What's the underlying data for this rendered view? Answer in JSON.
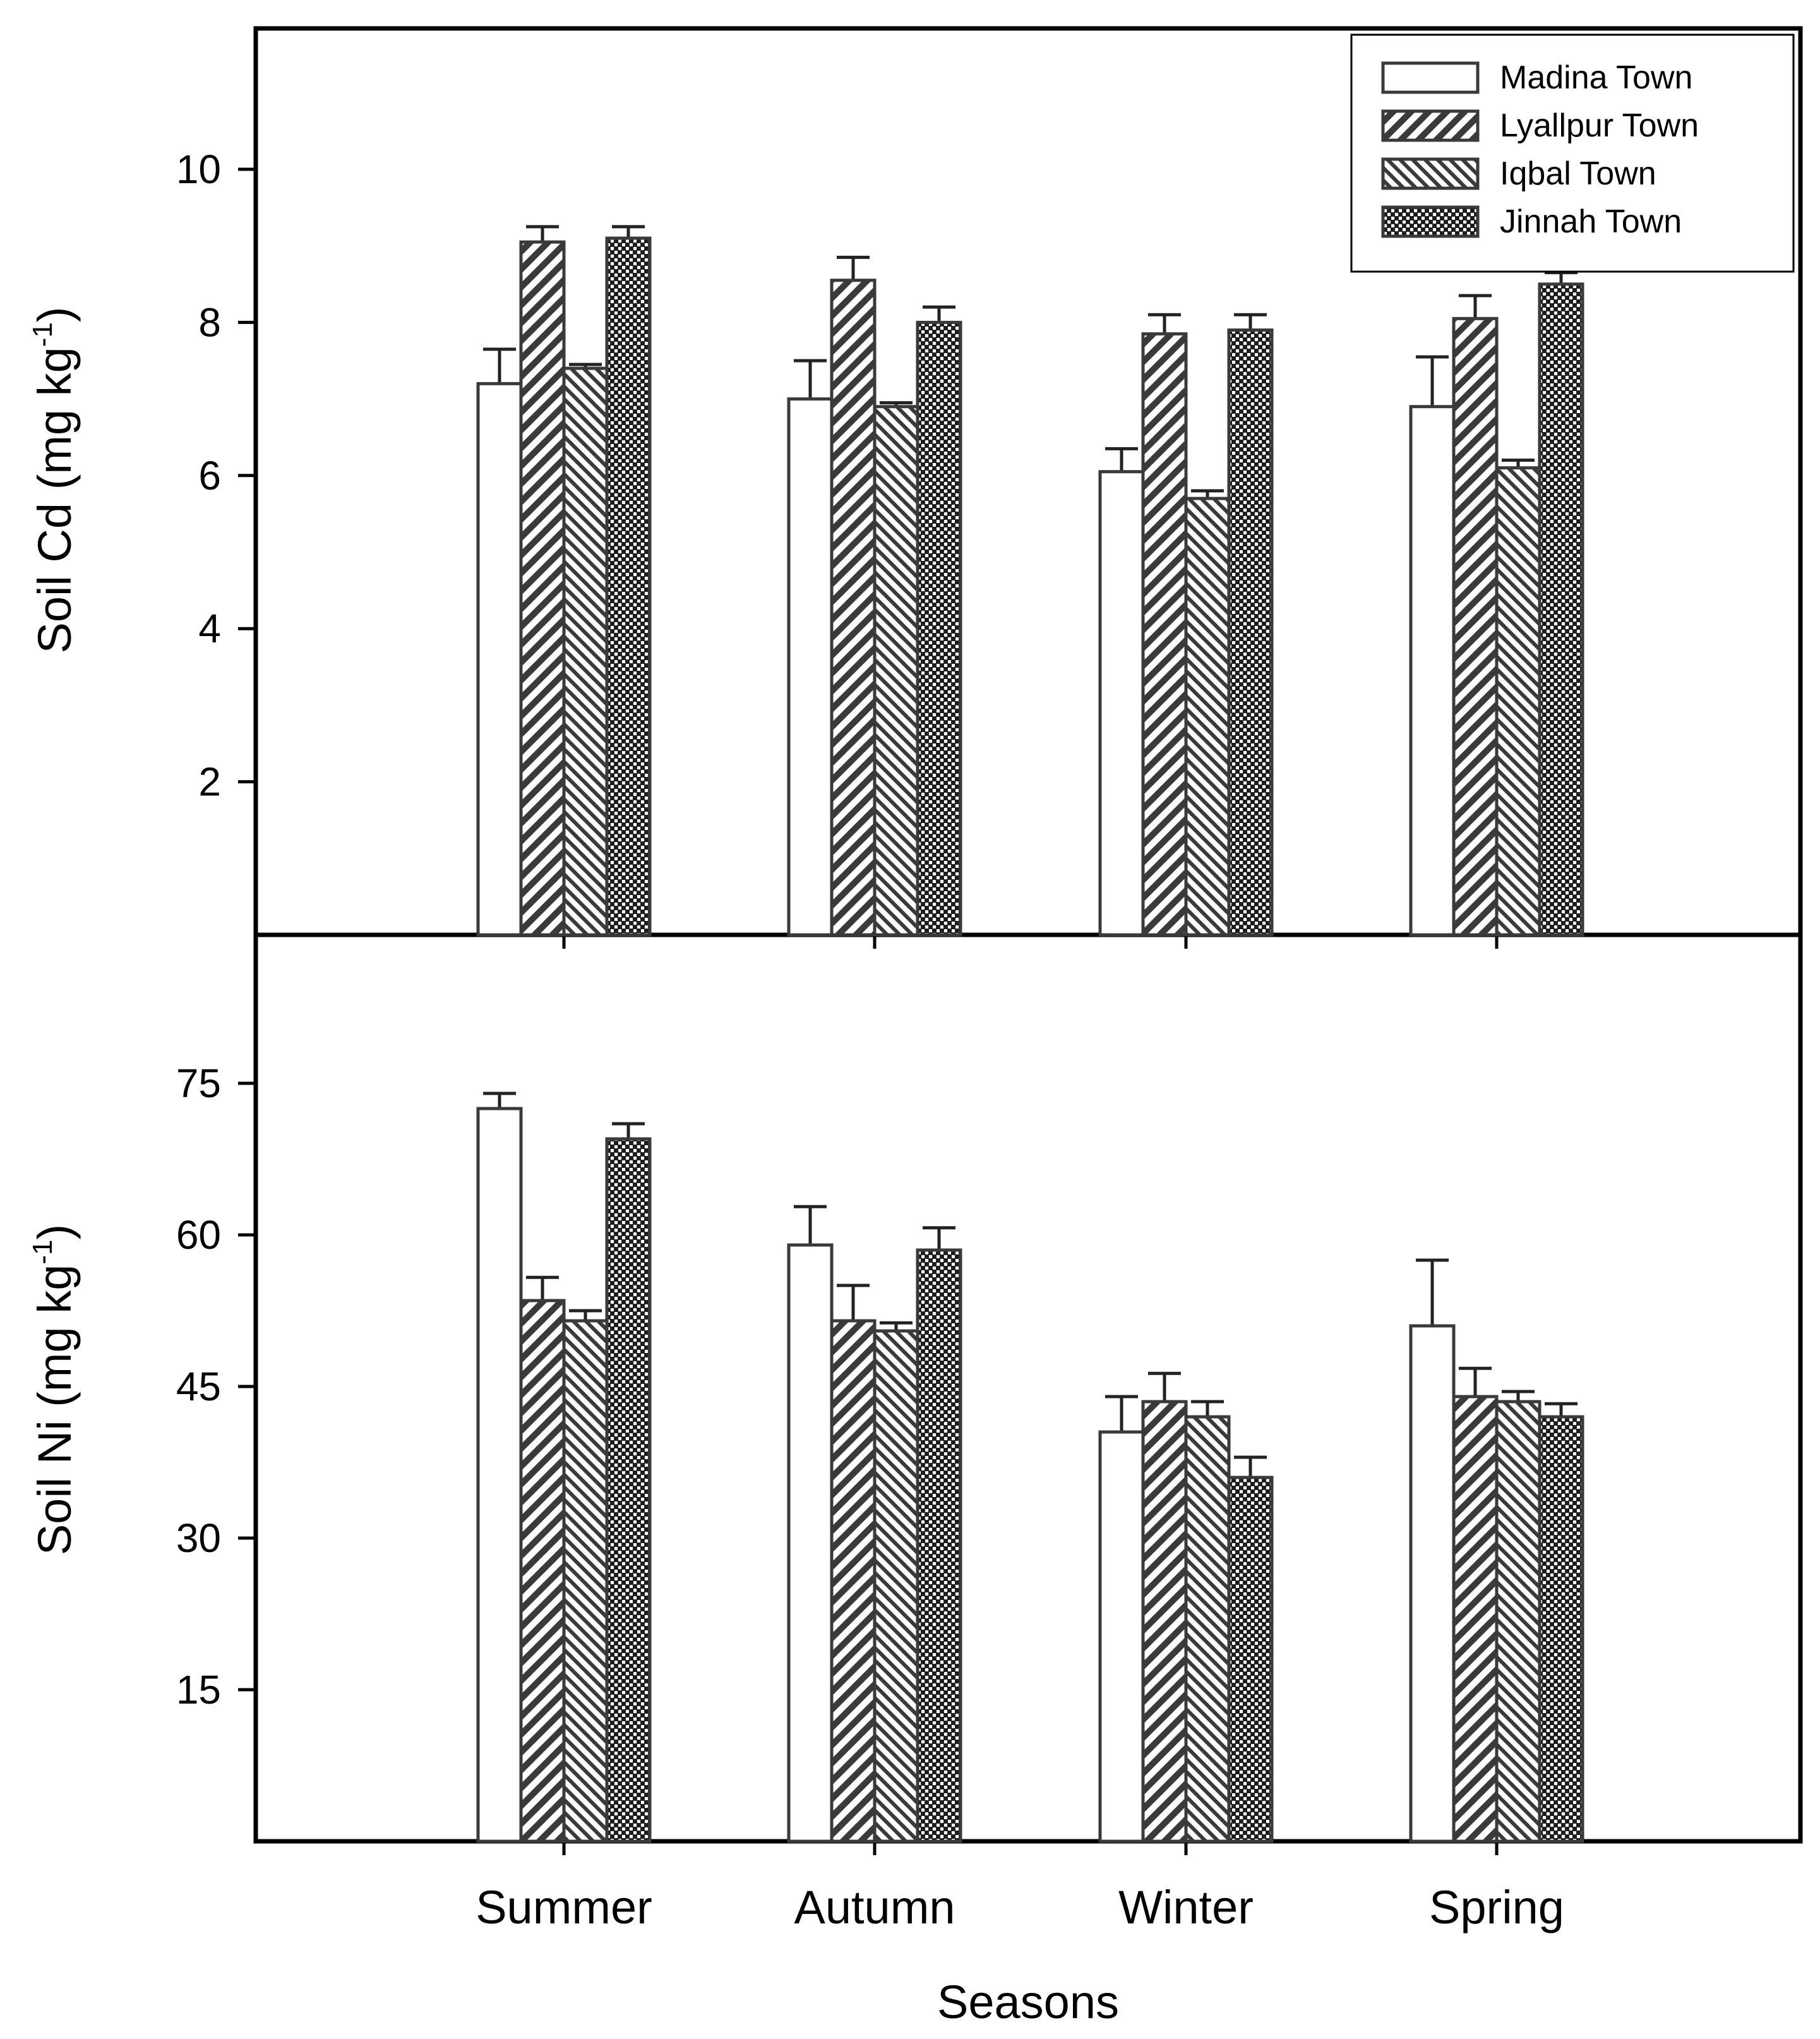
{
  "colors": {
    "madina": "#ffffff",
    "lyallpur": "#9a9a9a",
    "iqbal": "#b5b5b5",
    "jinnah": "#555555",
    "axis": "#000000"
  },
  "legend": {
    "placement": "top-right",
    "entries": [
      {
        "label": "Madina Town",
        "pattern": "open"
      },
      {
        "label": "Lyallpur Town",
        "pattern": "wide-diagonal"
      },
      {
        "label": "Iqbal Town",
        "pattern": "back-diagonal"
      },
      {
        "label": "Jinnah Town",
        "pattern": "dots"
      }
    ]
  },
  "chart_data": [
    {
      "type": "bar",
      "panel": "top",
      "title": "",
      "xlabel": "Seasons",
      "ylabel": "Soil Cd (mg kg",
      "ylabel_sup": "-1",
      "ylabel_close": ")",
      "ylim": [
        0,
        12
      ],
      "yticks": [
        2,
        4,
        6,
        8,
        10
      ],
      "ytick_labels": [
        "2",
        "4",
        "6",
        "8",
        "10"
      ],
      "categories": [
        "Summer",
        "Autumn",
        "Winter",
        "Spring"
      ],
      "series": [
        {
          "name": "Madina Town",
          "values": [
            7.2,
            7.0,
            6.05,
            6.9
          ],
          "errors": [
            0.45,
            0.5,
            0.3,
            0.65
          ]
        },
        {
          "name": "Lyallpur Town",
          "values": [
            9.05,
            8.55,
            7.85,
            8.05
          ],
          "errors": [
            0.2,
            0.3,
            0.25,
            0.3
          ]
        },
        {
          "name": "Iqbal Town",
          "values": [
            7.4,
            6.9,
            5.7,
            6.1
          ],
          "errors": [
            0.05,
            0.05,
            0.1,
            0.1
          ]
        },
        {
          "name": "Jinnah Town",
          "values": [
            9.1,
            8.0,
            7.9,
            8.5
          ],
          "errors": [
            0.15,
            0.2,
            0.2,
            0.15
          ]
        }
      ]
    },
    {
      "type": "bar",
      "panel": "bottom",
      "title": "",
      "xlabel": "Seasons",
      "ylabel": "Soil Ni (mg kg",
      "ylabel_sup": "-1",
      "ylabel_close": ")",
      "ylim": [
        0,
        90
      ],
      "yticks": [
        15,
        30,
        45,
        60,
        75
      ],
      "ytick_labels": [
        "15",
        "30",
        "45",
        "60",
        "75"
      ],
      "categories": [
        "Summer",
        "Autumn",
        "Winter",
        "Spring"
      ],
      "series": [
        {
          "name": "Madina Town",
          "values": [
            72.5,
            59.0,
            40.5,
            51.0
          ],
          "errors": [
            1.5,
            3.8,
            3.5,
            6.5
          ]
        },
        {
          "name": "Lyallpur Town",
          "values": [
            53.5,
            51.5,
            43.5,
            44.0
          ],
          "errors": [
            2.3,
            3.5,
            2.8,
            2.8
          ]
        },
        {
          "name": "Iqbal Town",
          "values": [
            51.5,
            50.5,
            42.0,
            43.5
          ],
          "errors": [
            1.0,
            0.8,
            1.5,
            1.0
          ]
        },
        {
          "name": "Jinnah Town",
          "values": [
            69.5,
            58.5,
            36.0,
            42.0
          ],
          "errors": [
            1.5,
            2.2,
            2.0,
            1.3
          ]
        }
      ]
    }
  ]
}
